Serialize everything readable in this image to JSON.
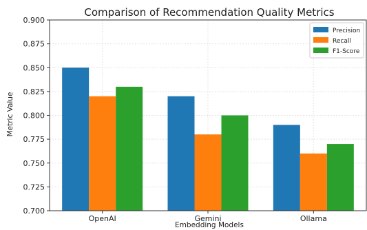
{
  "chart_data": {
    "type": "bar",
    "title": "Comparison of Recommendation Quality Metrics",
    "xlabel": "Embedding Models",
    "ylabel": "Metric Value",
    "categories": [
      "OpenAI",
      "Gemini",
      "Ollama"
    ],
    "series": [
      {
        "name": "Precision",
        "values": [
          0.85,
          0.82,
          0.79
        ],
        "color": "#1f77b4"
      },
      {
        "name": "Recall",
        "values": [
          0.82,
          0.78,
          0.76
        ],
        "color": "#ff7f0e"
      },
      {
        "name": "F1-Score",
        "values": [
          0.83,
          0.8,
          0.77
        ],
        "color": "#2ca02c"
      }
    ],
    "ylim": [
      0.7,
      0.9
    ],
    "yticks": [
      "0.700",
      "0.725",
      "0.750",
      "0.775",
      "0.800",
      "0.825",
      "0.850",
      "0.875",
      "0.900"
    ],
    "grid": true,
    "legend": "top-right"
  }
}
